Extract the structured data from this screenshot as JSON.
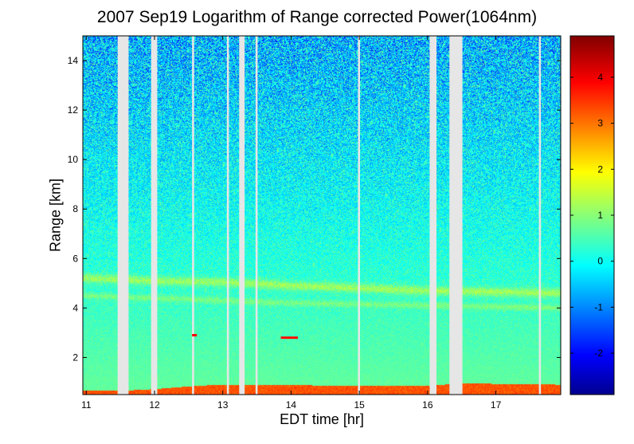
{
  "chart_data": {
    "type": "heatmap",
    "title": "2007 Sep19  Logarithm of Range corrected Power(1064nm)",
    "xlabel": "EDT time [hr]",
    "ylabel": "Range [km]",
    "xlim": [
      10.95,
      17.95
    ],
    "ylim": [
      0.5,
      15
    ],
    "x_ticks": [
      11,
      12,
      13,
      14,
      15,
      16,
      17
    ],
    "y_ticks": [
      2,
      4,
      6,
      8,
      10,
      12,
      14
    ],
    "colorbar": {
      "colormap": "jet",
      "range": [
        -2.9,
        4.9
      ],
      "ticks": [
        -2,
        -1,
        0,
        1,
        2,
        3,
        4
      ]
    },
    "data_gaps_hr": [
      [
        11.46,
        11.62
      ],
      [
        11.95,
        12.04
      ],
      [
        12.55,
        12.58
      ],
      [
        13.06,
        13.09
      ],
      [
        13.24,
        13.32
      ],
      [
        13.48,
        13.51
      ],
      [
        14.98,
        15.01
      ],
      [
        16.03,
        16.13
      ],
      [
        16.32,
        16.51
      ],
      [
        17.63,
        17.66
      ]
    ],
    "layers": [
      {
        "name": "boundary_layer",
        "x": [
          10.95,
          11.5,
          12.0,
          12.6,
          13.0,
          14.0,
          15.0,
          16.0,
          16.5,
          17.95
        ],
        "top_km": [
          0.65,
          0.65,
          0.72,
          0.85,
          0.9,
          0.88,
          0.85,
          0.85,
          0.95,
          0.9
        ],
        "log_power": 3.3
      },
      {
        "name": "aerosol_layer_upper",
        "x": [
          10.95,
          12.0,
          13.0,
          14.0,
          15.0,
          16.0,
          17.95
        ],
        "center_km": [
          5.2,
          5.1,
          5.05,
          4.9,
          4.8,
          4.7,
          4.6
        ],
        "thickness_km": 0.35,
        "log_power": 1.5
      },
      {
        "name": "aerosol_layer_lower",
        "x": [
          10.95,
          12.0,
          13.0,
          14.0,
          15.0,
          16.0,
          17.95
        ],
        "center_km": [
          4.5,
          4.4,
          4.3,
          4.2,
          4.15,
          4.1,
          4.0
        ],
        "thickness_km": 0.25,
        "log_power": 1.1
      }
    ],
    "features": [
      {
        "name": "cloud_patch",
        "x": [
          12.55,
          12.62
        ],
        "range_km": 2.9,
        "log_power": 4.0
      },
      {
        "name": "cloud_patch",
        "x": [
          13.85,
          14.1
        ],
        "range_km": 2.8,
        "log_power": 3.8
      }
    ],
    "background_log_power": {
      "near_surface": 0.8,
      "at_15km": -0.5
    }
  }
}
